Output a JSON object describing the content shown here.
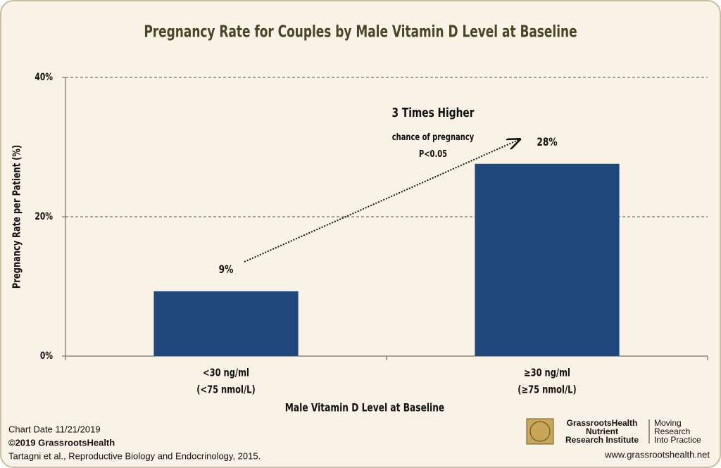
{
  "chart_data": {
    "type": "bar",
    "title": "Pregnancy Rate for Couples by Male Vitamin D Level at Baseline",
    "x_label": "Male Vitamin D Level at Baseline",
    "y_label": "Pregnancy Rate per Patient (%)",
    "categories": [
      [
        "<30 ng/ml",
        "(<75 nmol/L)"
      ],
      [
        "≥30 ng/ml",
        "(≥75 nmol/L)"
      ]
    ],
    "values": [
      9.3,
      27.6
    ],
    "value_labels": [
      "9%",
      "28%"
    ],
    "color": "#1f497d",
    "ylim": [
      0,
      40
    ],
    "yticks": [
      {
        "value": 0,
        "label": "0%"
      },
      {
        "value": 20,
        "label": "20%"
      },
      {
        "value": 40,
        "label": "40%"
      }
    ],
    "grid": true,
    "annotations": [
      "3 Times Higher",
      "chance of pregnancy",
      "P<0.05"
    ]
  },
  "footer": {
    "chart_date": "Chart Date  11/21/2019",
    "copyright": "©2019 GrassrootsHealth",
    "citation": "Tartagni et al., Reproductive Biology and Endocrinology, 2015.",
    "logo": [
      "GrassrootsHealth",
      "Nutrient",
      "Research Institute"
    ],
    "tagline": [
      "Moving",
      "Research",
      "Into Practice"
    ],
    "url": "www.grassrootshealth.net"
  }
}
